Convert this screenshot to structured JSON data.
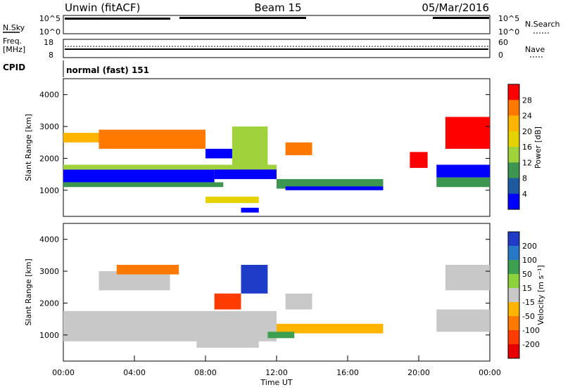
{
  "header": {
    "radar": "Unwin (fitACF)",
    "beam": "Beam 15",
    "date": "05/Mar/2016"
  },
  "top_panels": {
    "nsky_label": "N.Sky",
    "nsky_ticks": [
      "10^5",
      "10^0"
    ],
    "nsearch_label": "N.Search",
    "freq_label_1": "Freq.",
    "freq_label_2": "[MHz]",
    "freq_ticks": [
      "18",
      "8"
    ],
    "nave_label": "Nave",
    "nave_ticks": [
      "60",
      "0"
    ],
    "cpid_label": "CPID",
    "cpid_value": "normal (fast) 151"
  },
  "colors": {
    "gray_scatter": "#c8c8c8"
  },
  "chart_data": [
    {
      "type": "heatmap",
      "name": "power",
      "ylabel": "Slant Range [km]",
      "ylim": [
        180,
        4500
      ],
      "yticks": [
        1000,
        2000,
        3000,
        4000
      ],
      "colorbar": {
        "label": "Power [dB]",
        "ticks": [
          "28",
          "24",
          "20",
          "16",
          "12",
          "8",
          "4"
        ],
        "colors": [
          "#ff0000",
          "#ff7800",
          "#ffb400",
          "#e6d200",
          "#a0d23c",
          "#3c9650",
          "#1e5aa0",
          "#0000ff"
        ]
      },
      "regions": [
        {
          "x0": 0.0,
          "x1": 8.5,
          "y0": 1250,
          "y1": 1650,
          "level": 7
        },
        {
          "x0": 8.5,
          "x1": 12.0,
          "y0": 1350,
          "y1": 1750,
          "level": 7
        },
        {
          "x0": 0.0,
          "x1": 9.0,
          "y0": 1100,
          "y1": 1250,
          "level": 5
        },
        {
          "x0": 0.0,
          "x1": 12.0,
          "y0": 1650,
          "y1": 1800,
          "level": 4
        },
        {
          "x0": 12.0,
          "x1": 18.0,
          "y0": 1050,
          "y1": 1350,
          "level": 5
        },
        {
          "x0": 12.5,
          "x1": 18.0,
          "y0": 1000,
          "y1": 1120,
          "level": 7
        },
        {
          "x0": 21.0,
          "x1": 24.0,
          "y0": 1400,
          "y1": 1800,
          "level": 7
        },
        {
          "x0": 21.0,
          "x1": 24.0,
          "y0": 1100,
          "y1": 1400,
          "level": 5
        },
        {
          "x0": 2.0,
          "x1": 8.0,
          "y0": 2300,
          "y1": 2900,
          "level": 1
        },
        {
          "x0": 0.0,
          "x1": 2.0,
          "y0": 2500,
          "y1": 2800,
          "level": 2
        },
        {
          "x0": 8.0,
          "x1": 10.0,
          "y0": 2000,
          "y1": 2300,
          "level": 7
        },
        {
          "x0": 9.5,
          "x1": 11.5,
          "y0": 1800,
          "y1": 3000,
          "level": 4
        },
        {
          "x0": 12.5,
          "x1": 14.0,
          "y0": 2100,
          "y1": 2500,
          "level": 1
        },
        {
          "x0": 21.5,
          "x1": 24.0,
          "y0": 2300,
          "y1": 3300,
          "level": 0
        },
        {
          "x0": 19.5,
          "x1": 20.5,
          "y0": 1700,
          "y1": 2200,
          "level": 0
        },
        {
          "x0": 10.0,
          "x1": 11.0,
          "y0": 300,
          "y1": 450,
          "level": 7
        },
        {
          "x0": 8.0,
          "x1": 11.0,
          "y0": 600,
          "y1": 800,
          "level": 3
        }
      ]
    },
    {
      "type": "heatmap",
      "name": "velocity",
      "ylabel": "Slant Range [km]",
      "ylim": [
        180,
        4500
      ],
      "yticks": [
        1000,
        2000,
        3000,
        4000
      ],
      "xlabel": "Time UT",
      "xlim": [
        0,
        24
      ],
      "xticks": [
        "00:00",
        "04:00",
        "08:00",
        "12:00",
        "16:00",
        "20:00",
        "00:00"
      ],
      "colorbar": {
        "label": "Velocity [m s⁻¹]",
        "ticks": [
          "200",
          "100",
          "50",
          "15",
          "-15",
          "-50",
          "-100",
          "-200"
        ],
        "colors": [
          "#1e3cc8",
          "#2878c8",
          "#3ca050",
          "#8cd23c",
          "#c8c8c8",
          "#ffb400",
          "#ff7800",
          "#ff3c00",
          "#e60000"
        ]
      },
      "regions": [
        {
          "x0": 0.0,
          "x1": 12.0,
          "y0": 800,
          "y1": 1750,
          "level": 4
        },
        {
          "x0": 12.0,
          "x1": 18.0,
          "y0": 1050,
          "y1": 1350,
          "level": 5
        },
        {
          "x0": 21.0,
          "x1": 24.0,
          "y0": 1100,
          "y1": 1800,
          "level": 4
        },
        {
          "x0": 10.0,
          "x1": 11.5,
          "y0": 2300,
          "y1": 3200,
          "level": 0
        },
        {
          "x0": 8.5,
          "x1": 10.0,
          "y0": 1800,
          "y1": 2300,
          "level": 7
        },
        {
          "x0": 11.5,
          "x1": 13.0,
          "y0": 900,
          "y1": 1100,
          "level": 2
        },
        {
          "x0": 2.0,
          "x1": 6.0,
          "y0": 2400,
          "y1": 3000,
          "level": 4
        },
        {
          "x0": 3.0,
          "x1": 6.5,
          "y0": 2900,
          "y1": 3200,
          "level": 6
        },
        {
          "x0": 12.5,
          "x1": 14.0,
          "y0": 1800,
          "y1": 2300,
          "level": 4
        },
        {
          "x0": 21.5,
          "x1": 24.0,
          "y0": 2400,
          "y1": 3200,
          "level": 4
        },
        {
          "x0": 7.5,
          "x1": 11.0,
          "y0": 600,
          "y1": 900,
          "level": 4
        }
      ]
    }
  ]
}
